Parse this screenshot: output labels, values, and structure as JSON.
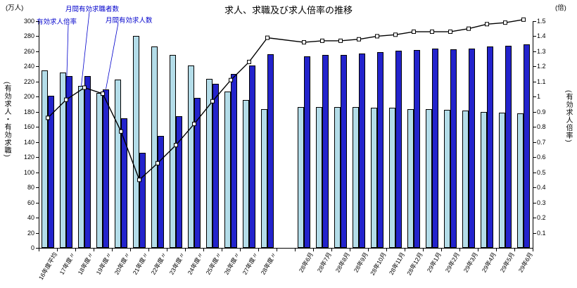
{
  "title": "求人、求職及び求人倍率の推移",
  "units": {
    "left_top": "(万人)",
    "right_top": "(倍)"
  },
  "axis_titles": {
    "left_vertical": "(有効求人・有効求職)",
    "right_vertical": "(有効求人倍率)"
  },
  "annotations": {
    "ratio_label": "有効求人倍率",
    "seekers_label": "月間有効求職者数",
    "offers_label": "月間有効求人数"
  },
  "colors": {
    "seekers_bar": "#b4dde9",
    "offers_bar": "#2323cc",
    "ratio_line": "#000000",
    "annotation_text": "#0000cc"
  },
  "chart_data": {
    "type": "bar",
    "subtype": "grouped bars with overlaid line on secondary axis",
    "title": "求人、求職及び求人倍率の推移",
    "categories": [
      "16年度平均",
      "17年度〃",
      "18年度〃",
      "19年度〃",
      "20年度〃",
      "21年度〃",
      "22年度〃",
      "23年度〃",
      "24年度〃",
      "25年度〃",
      "26年度〃",
      "27年度〃",
      "28年度〃",
      "28年6月",
      "28年7月",
      "28年8月",
      "28年9月",
      "28年10月",
      "28年11月",
      "28年12月",
      "29年1月",
      "29年2月",
      "29年3月",
      "29年4月",
      "29年5月",
      "29年6月"
    ],
    "gap_after_index": 12,
    "series": [
      {
        "name": "月間有効求職者数",
        "type": "bar",
        "axis": "left",
        "color": "#b4dde9",
        "values": [
          235,
          232,
          214,
          205,
          223,
          280,
          266,
          255,
          241,
          224,
          207,
          196,
          184,
          186,
          186,
          186,
          186,
          185,
          185,
          184,
          184,
          183,
          182,
          180,
          179,
          178
        ]
      },
      {
        "name": "月間有効求人数",
        "type": "bar",
        "axis": "left",
        "color": "#2323cc",
        "values": [
          201,
          227,
          227,
          210,
          171,
          126,
          148,
          174,
          198,
          217,
          230,
          241,
          256,
          253,
          255,
          255,
          257,
          259,
          261,
          262,
          264,
          263,
          264,
          266,
          267,
          269
        ]
      },
      {
        "name": "有効求人倍率",
        "type": "line",
        "axis": "right",
        "color": "#000000",
        "marker": "open-square",
        "values": [
          0.86,
          0.98,
          1.06,
          1.02,
          0.77,
          0.45,
          0.56,
          0.68,
          0.82,
          0.97,
          1.11,
          1.23,
          1.39,
          1.36,
          1.37,
          1.37,
          1.38,
          1.4,
          1.41,
          1.43,
          1.43,
          1.43,
          1.45,
          1.48,
          1.49,
          1.51
        ]
      }
    ],
    "left_axis": {
      "title": "(有効求人・有効求職)",
      "unit": "万人",
      "min": 0,
      "max": 300,
      "step": 20
    },
    "right_axis": {
      "title": "(有効求人倍率)",
      "unit": "倍",
      "min": 0,
      "max": 1.5,
      "step": 0.1,
      "first_label": 0.1
    },
    "grid": false,
    "legend_position": "annotation labels with leader lines, top-left"
  }
}
